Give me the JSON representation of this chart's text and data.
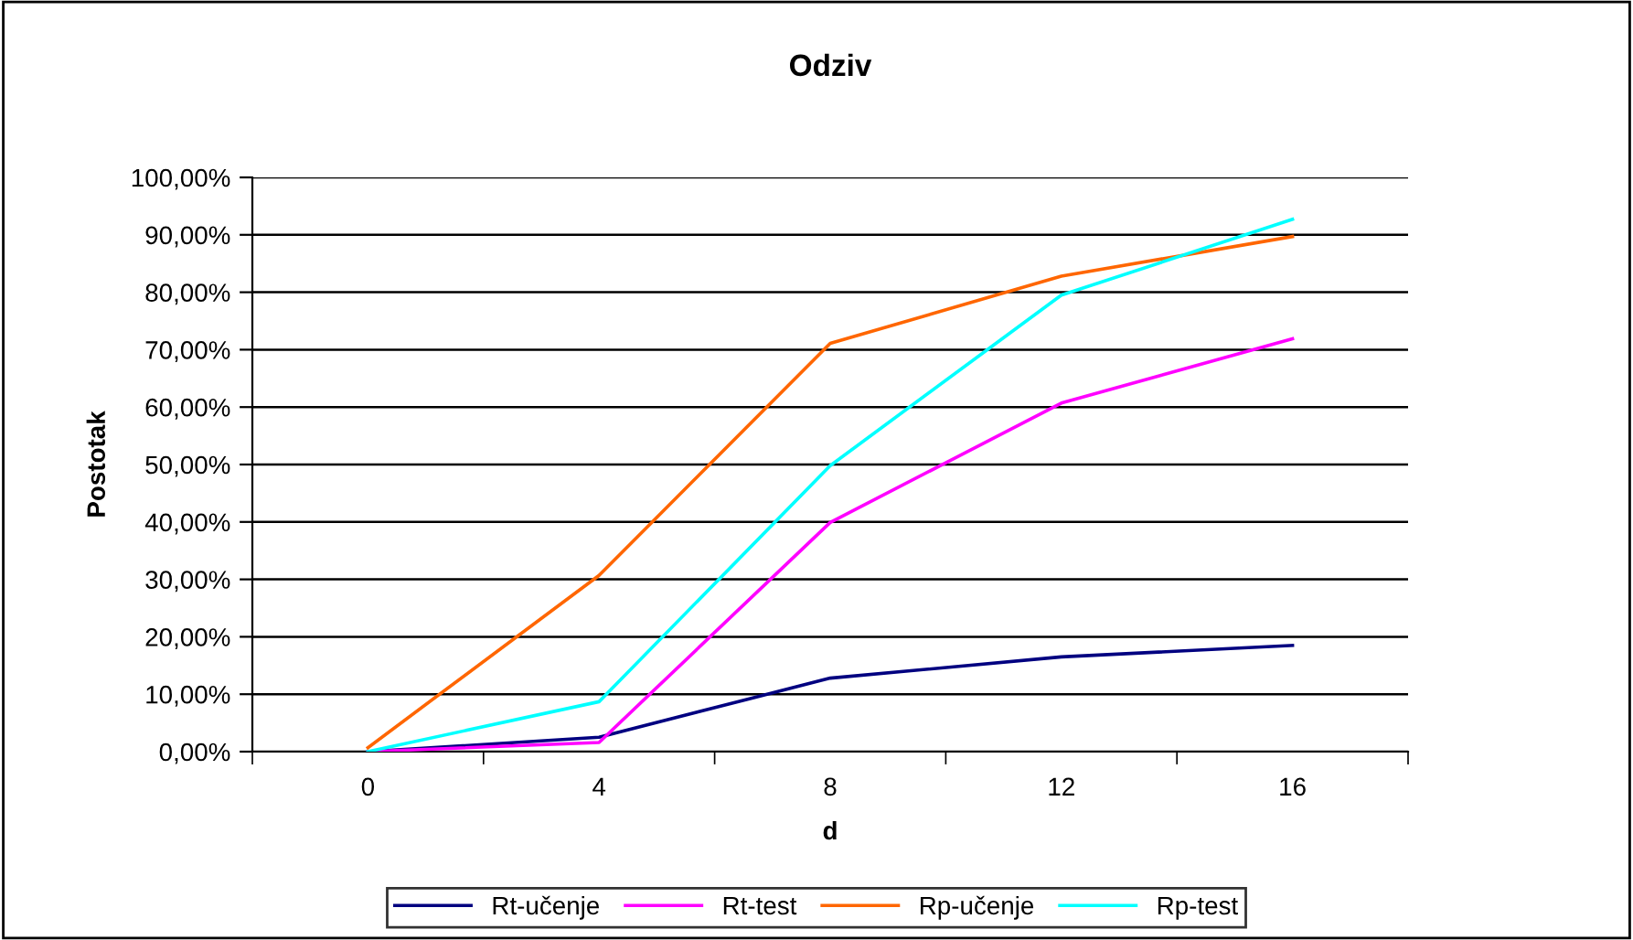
{
  "chart_data": {
    "type": "line",
    "title": "Odziv",
    "xlabel": "d",
    "ylabel": "Postotak",
    "categories": [
      "0",
      "4",
      "8",
      "12",
      "16"
    ],
    "series": [
      {
        "name": "Rt-učenje",
        "color": "#000080",
        "values": [
          0,
          2.5,
          12.8,
          16.5,
          18.5
        ]
      },
      {
        "name": "Rt-test",
        "color": "#ff00ff",
        "values": [
          0,
          1.6,
          39.9,
          60.7,
          71.9
        ]
      },
      {
        "name": "Rp-učenje",
        "color": "#ff6600",
        "values": [
          0.7,
          30.7,
          71.1,
          82.8,
          89.7
        ]
      },
      {
        "name": "Rp-test",
        "color": "#00ffff",
        "values": [
          0,
          8.7,
          49.8,
          79.5,
          92.7
        ]
      }
    ],
    "ylim": [
      0,
      100
    ],
    "yticks": [
      {
        "value": 0,
        "label": "0,00%"
      },
      {
        "value": 10,
        "label": "10,00%"
      },
      {
        "value": 20,
        "label": "20,00%"
      },
      {
        "value": 30,
        "label": "30,00%"
      },
      {
        "value": 40,
        "label": "40,00%"
      },
      {
        "value": 50,
        "label": "50,00%"
      },
      {
        "value": 60,
        "label": "60,00%"
      },
      {
        "value": 70,
        "label": "70,00%"
      },
      {
        "value": 80,
        "label": "80,00%"
      },
      {
        "value": 90,
        "label": "90,00%"
      },
      {
        "value": 100,
        "label": "100,00%"
      }
    ],
    "grid": "y",
    "legend": "bottom",
    "marker": "none",
    "line_style": "solid"
  }
}
